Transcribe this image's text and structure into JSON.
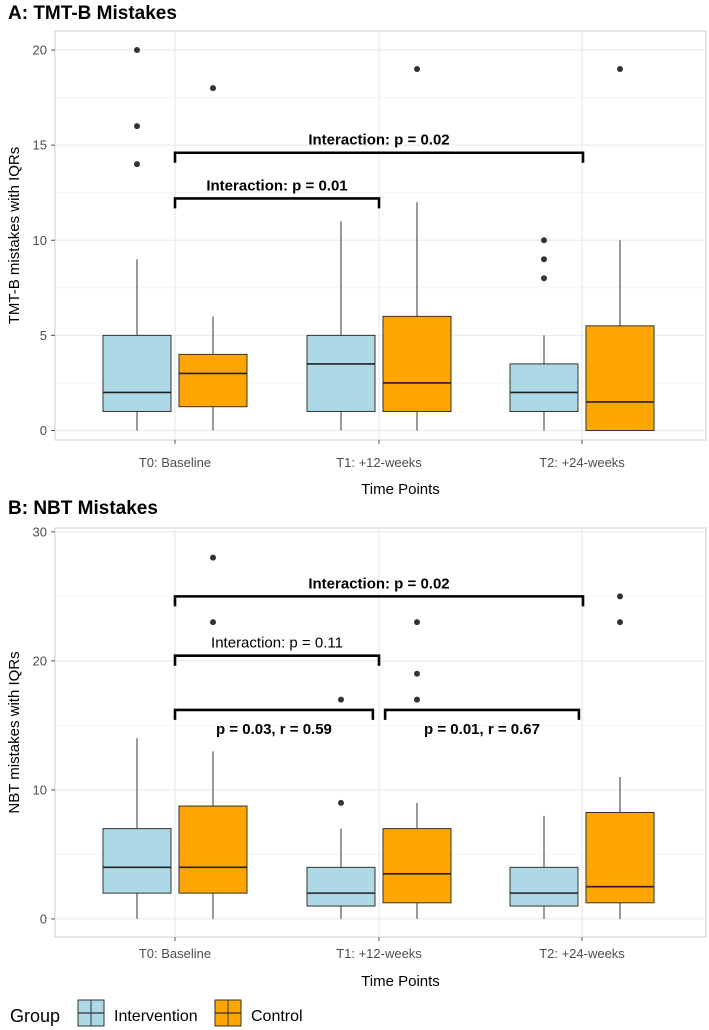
{
  "colors": {
    "intervention": "#add8e6",
    "control": "#ffa500",
    "grid": "#ebebeb",
    "panel_border": "#cccccc"
  },
  "legend": {
    "title": "Group",
    "items": [
      {
        "label": "Intervention",
        "color": "#add8e6"
      },
      {
        "label": "Control",
        "color": "#ffa500"
      }
    ]
  },
  "chart_data": [
    {
      "type": "boxplot",
      "title": "A: TMT-B Mistakes",
      "xlabel": "Time Points",
      "ylabel": "TMT-B mistakes with IQRs",
      "categories": [
        "T0: Baseline",
        "T1: +12-weeks",
        "T2: +24-weeks"
      ],
      "ylim": [
        -0.5,
        21
      ],
      "yticks": [
        0,
        5,
        10,
        15,
        20
      ],
      "series": [
        {
          "name": "Intervention",
          "boxes": [
            {
              "q1": 1,
              "median": 2,
              "q3": 5,
              "whisker_low": 0,
              "whisker_high": 9,
              "outliers": [
                14,
                16,
                20
              ]
            },
            {
              "q1": 1,
              "median": 3.5,
              "q3": 5,
              "whisker_low": 0,
              "whisker_high": 11,
              "outliers": []
            },
            {
              "q1": 1,
              "median": 2,
              "q3": 3.5,
              "whisker_low": 0,
              "whisker_high": 5,
              "outliers": [
                8,
                9,
                10
              ]
            }
          ]
        },
        {
          "name": "Control",
          "boxes": [
            {
              "q1": 1.25,
              "median": 3,
              "q3": 4,
              "whisker_low": 0,
              "whisker_high": 6,
              "outliers": [
                18
              ]
            },
            {
              "q1": 1,
              "median": 2.5,
              "q3": 6,
              "whisker_low": 0,
              "whisker_high": 12,
              "outliers": [
                19
              ]
            },
            {
              "q1": 0,
              "median": 1.5,
              "q3": 5.5,
              "whisker_low": 0,
              "whisker_high": 10,
              "outliers": [
                19
              ]
            }
          ]
        }
      ],
      "annotations": [
        {
          "text": "Interaction: p = 0.02",
          "from": 0,
          "to": 2,
          "y": 14.6,
          "bold": true
        },
        {
          "text": "Interaction: p = 0.01",
          "from": 0,
          "to": 1,
          "y": 12.2,
          "bold": true
        }
      ]
    },
    {
      "type": "boxplot",
      "title": "B: NBT Mistakes",
      "xlabel": "Time Points",
      "ylabel": "NBT mistakes with IQRs",
      "categories": [
        "T0: Baseline",
        "T1: +12-weeks",
        "T2: +24-weeks"
      ],
      "ylim": [
        -1.4,
        30.3
      ],
      "yticks": [
        0,
        10,
        20,
        30
      ],
      "series": [
        {
          "name": "Intervention",
          "boxes": [
            {
              "q1": 2,
              "median": 4,
              "q3": 7,
              "whisker_low": 0,
              "whisker_high": 14,
              "outliers": []
            },
            {
              "q1": 1,
              "median": 2,
              "q3": 4,
              "whisker_low": 0,
              "whisker_high": 7,
              "outliers": [
                9,
                17
              ]
            },
            {
              "q1": 1,
              "median": 2,
              "q3": 4,
              "whisker_low": 0,
              "whisker_high": 8,
              "outliers": []
            }
          ]
        },
        {
          "name": "Control",
          "boxes": [
            {
              "q1": 2,
              "median": 4,
              "q3": 8.75,
              "whisker_low": 0,
              "whisker_high": 13,
              "outliers": [
                23,
                28
              ]
            },
            {
              "q1": 1.25,
              "median": 3.5,
              "q3": 7,
              "whisker_low": 0,
              "whisker_high": 9,
              "outliers": [
                17,
                19,
                23
              ]
            },
            {
              "q1": 1.25,
              "median": 2.5,
              "q3": 8.25,
              "whisker_low": 0,
              "whisker_high": 11,
              "outliers": [
                23,
                25
              ]
            }
          ]
        }
      ],
      "annotations": [
        {
          "text": "Interaction: p = 0.02",
          "from": 0,
          "to": 2,
          "y": 25.0,
          "bold": true
        },
        {
          "text": "Interaction: p = 0.11",
          "from": 0,
          "to": 1,
          "y": 20.4,
          "bold": false
        },
        {
          "text": "p = 0.03, r = 0.59",
          "from": 0,
          "to": 0.97,
          "y": 16.2,
          "bold": true,
          "below": true
        },
        {
          "text": "p = 0.01, r = 0.67",
          "from": 1.03,
          "to": 1.98,
          "y": 16.2,
          "bold": true,
          "below": true
        }
      ]
    }
  ]
}
